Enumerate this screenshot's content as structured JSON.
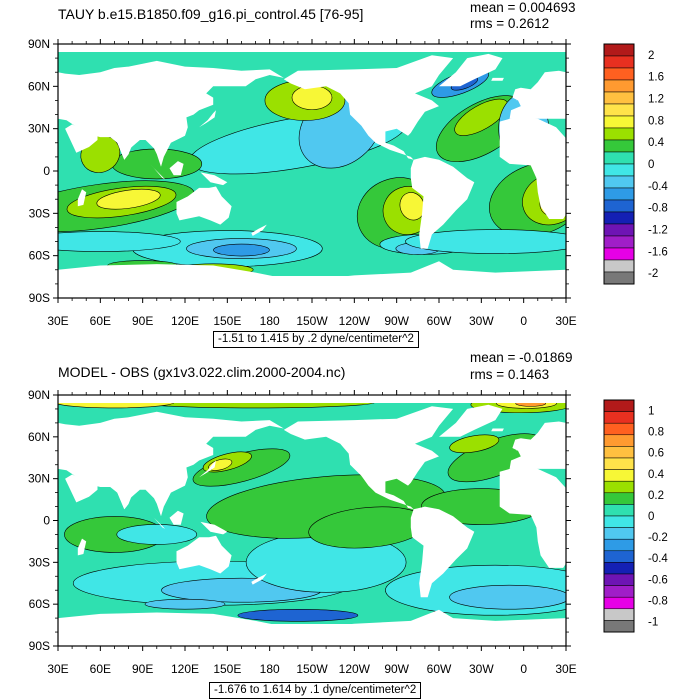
{
  "panels": [
    {
      "title": "TAUY b.e15.B1850.f09_g16.pi_control.45 [76-95]",
      "mean": "mean = 0.004693",
      "rms": "rms = 0.2612",
      "range_label": "-1.51 to 1.415 by .2 dyne/centimeter^2",
      "colorbar_labels": [
        "2",
        "1.6",
        "1.2",
        "0.8",
        "0.4",
        "0",
        "-0.4",
        "-0.8",
        "-1.2",
        "-1.6",
        "-2"
      ],
      "colorbar_colors": [
        "#b21a1a",
        "#e83020",
        "#ff6020",
        "#ff9a30",
        "#ffc040",
        "#ffe34a",
        "#f7f736",
        "#9be000",
        "#35c83a",
        "#2fe0b0",
        "#40e6e6",
        "#50c8f0",
        "#2e9be6",
        "#1e64d2",
        "#1420b4",
        "#6e14b4",
        "#a01ec8",
        "#e600e6",
        "#c8c8c8",
        "#787878"
      ]
    },
    {
      "title": "MODEL - OBS (gx1v3.022.clim.2000-2004.nc)",
      "mean": "mean = -0.01869",
      "rms": "rms = 0.1463",
      "range_label": "-1.676 to 1.614 by .1 dyne/centimeter^2",
      "colorbar_labels": [
        "1",
        "0.8",
        "0.6",
        "0.4",
        "0.2",
        "0",
        "-0.2",
        "-0.4",
        "-0.6",
        "-0.8",
        "-1"
      ],
      "colorbar_colors": [
        "#b21a1a",
        "#e83020",
        "#ff6020",
        "#ff9a30",
        "#ffc040",
        "#ffe34a",
        "#f7f736",
        "#9be000",
        "#35c83a",
        "#2fe0b0",
        "#40e6e6",
        "#50c8f0",
        "#2e9be6",
        "#1e64d2",
        "#1420b4",
        "#6e14b4",
        "#a01ec8",
        "#e600e6",
        "#c8c8c8",
        "#787878"
      ]
    }
  ],
  "axes": {
    "lat_labels": [
      "90N",
      "60N",
      "30N",
      "0",
      "30S",
      "60S",
      "90S"
    ],
    "lon_labels": [
      "30E",
      "60E",
      "90E",
      "120E",
      "150E",
      "180",
      "150W",
      "120W",
      "90W",
      "60W",
      "30W",
      "0",
      "30E"
    ]
  },
  "map_colors": {
    "ocean_base": "#2fe0b0",
    "land": "#ffffff",
    "positive_light": "#35c83a",
    "positive_mid": "#9be000",
    "positive_high": "#f7f736",
    "positive_peak": "#ffc040",
    "positive_max": "#ff9a30",
    "negative_light": "#40e6e6",
    "negative_mid": "#50c8f0",
    "negative_high": "#2e9be6",
    "negative_max": "#1e64d2",
    "negative_peak": "#1420b4"
  }
}
